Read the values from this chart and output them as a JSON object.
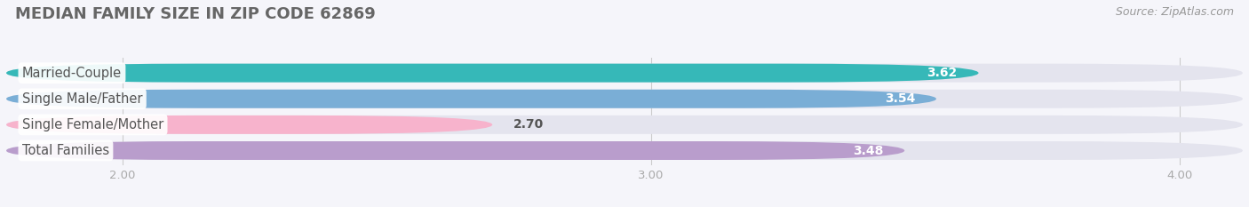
{
  "title": "MEDIAN FAMILY SIZE IN ZIP CODE 62869",
  "source": "Source: ZipAtlas.com",
  "categories": [
    "Married-Couple",
    "Single Male/Father",
    "Single Female/Mother",
    "Total Families"
  ],
  "values": [
    3.62,
    3.54,
    2.7,
    3.48
  ],
  "bar_colors": [
    "#36b8b8",
    "#7aaed6",
    "#f7b3cc",
    "#b99dcc"
  ],
  "bg_track_color": "#e4e4ee",
  "xlim_min": 1.78,
  "xlim_max": 4.12,
  "xticks": [
    2.0,
    3.0,
    4.0
  ],
  "xtick_labels": [
    "2.00",
    "3.00",
    "4.00"
  ],
  "bar_height": 0.72,
  "bar_gap": 1.0,
  "label_fontsize": 10.5,
  "value_fontsize": 10,
  "title_fontsize": 13,
  "source_fontsize": 9,
  "background_color": "#f5f5fa",
  "grid_color": "#cccccc",
  "label_text_color": "#555555",
  "title_color": "#666666",
  "source_color": "#999999",
  "tick_color": "#aaaaaa"
}
